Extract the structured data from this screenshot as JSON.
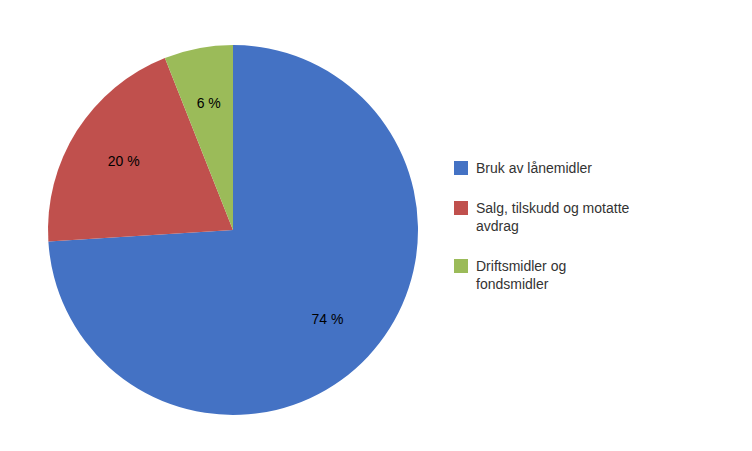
{
  "chart_data": {
    "type": "pie",
    "categories": [
      "Bruk av lånemidler",
      "Salg, tilskudd og motatte\navdrag",
      "Driftsmidler og\nfondsmidler"
    ],
    "values": [
      74,
      20,
      6
    ],
    "value_labels": [
      "74 %",
      "20 %",
      "6 %"
    ],
    "colors": [
      "#4472C4",
      "#C0504D",
      "#9BBB59"
    ],
    "data_labels": true,
    "legend": "right"
  }
}
